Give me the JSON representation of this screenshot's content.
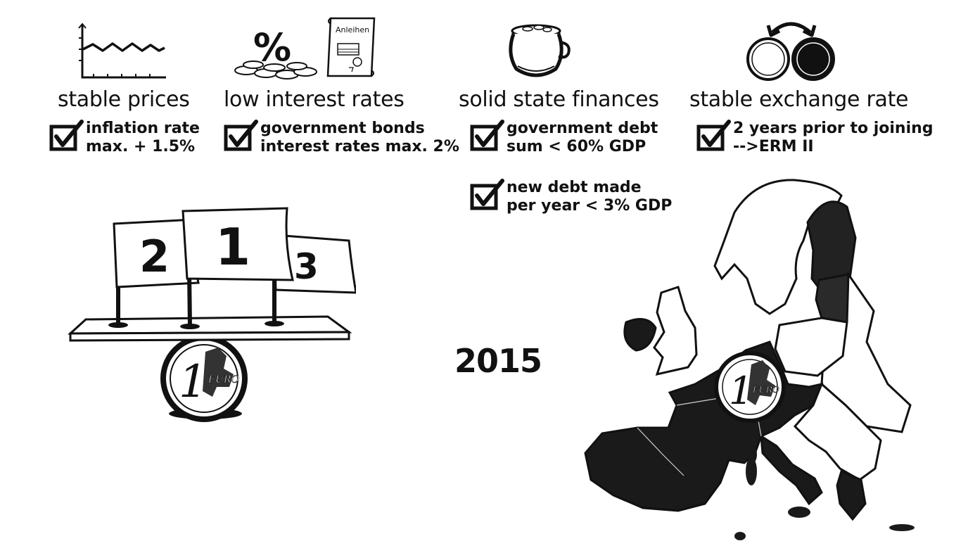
{
  "criteria": [
    {
      "icon": "price-chart-icon",
      "heading": "stable prices",
      "checks": [
        {
          "lines": [
            "inflation rate",
            "max. + 1.5%"
          ]
        }
      ]
    },
    {
      "icon": "coins-and-bonds-icon",
      "bond_label": "Anleihen",
      "percent_symbol": "%",
      "heading": "low interest rates",
      "checks": [
        {
          "lines": [
            "government bonds",
            "interest rates max. 2%"
          ]
        }
      ]
    },
    {
      "icon": "money-pot-icon",
      "heading": "solid state finances",
      "checks": [
        {
          "lines": [
            "government debt",
            "sum < 60% GDP"
          ]
        },
        {
          "lines": [
            "new debt made",
            "per year < 3% GDP"
          ]
        }
      ]
    },
    {
      "icon": "currency-exchange-icon",
      "heading": "stable exchange rate",
      "checks": [
        {
          "lines": [
            "2 years prior to joining",
            "-->ERM II"
          ]
        }
      ]
    }
  ],
  "podium": {
    "flags": [
      "2",
      "1",
      "3"
    ],
    "coin_value": "1",
    "coin_unit": "EURO"
  },
  "year": "2015",
  "map": {
    "coin_value": "1",
    "coin_unit": "EURO"
  }
}
